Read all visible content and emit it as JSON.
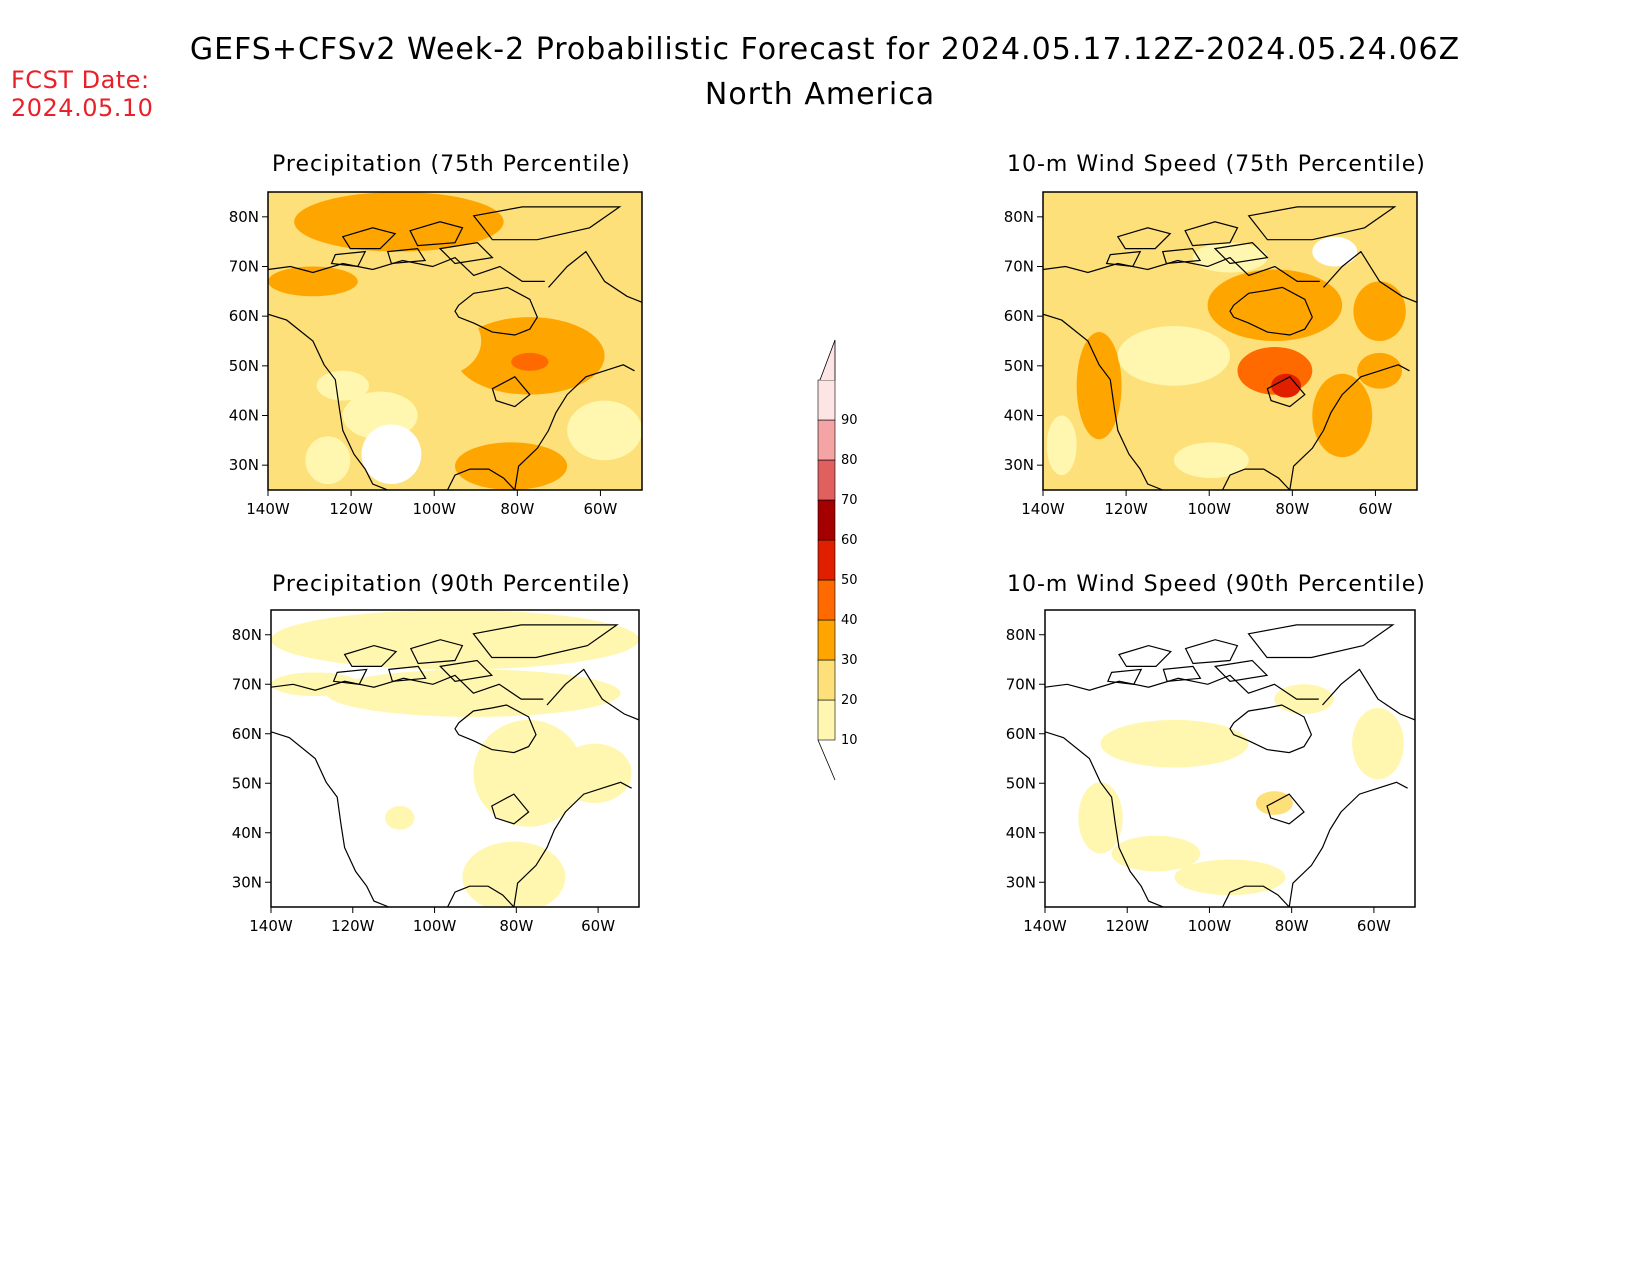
{
  "header": {
    "title": "GEFS+CFSv2 Week-2 Probabilistic Forecast for 2024.05.17.12Z-2024.05.24.06Z",
    "subtitle": "North America",
    "fcst_label": "FCST Date:",
    "fcst_date": "2024.05.10"
  },
  "axes": {
    "lat_labels": [
      "80N",
      "70N",
      "60N",
      "50N",
      "40N",
      "30N"
    ],
    "lon_labels": [
      "140W",
      "120W",
      "100W",
      "80W",
      "60W"
    ]
  },
  "panels": [
    {
      "title": "Precipitation (75th Percentile)",
      "variable": "precipitation",
      "percentile": 75
    },
    {
      "title": "10-m Wind Speed (75th Percentile)",
      "variable": "wind_speed_10m",
      "percentile": 75
    },
    {
      "title": "Precipitation (90th Percentile)",
      "variable": "precipitation",
      "percentile": 90
    },
    {
      "title": "10-m Wind Speed (90th Percentile)",
      "variable": "wind_speed_10m",
      "percentile": 90
    }
  ],
  "colorbar": {
    "levels": [
      "10",
      "20",
      "30",
      "40",
      "50",
      "60",
      "70",
      "80",
      "90"
    ],
    "colors": [
      "#fff7b0",
      "#fde07a",
      "#ffa500",
      "#ff6a00",
      "#e01e00",
      "#a50000",
      "#e06060",
      "#f4a4a4",
      "#fde5e5"
    ]
  },
  "chart_data": {
    "type": "heatmap",
    "title": "GEFS+CFSv2 Week-2 Probabilistic Forecast for 2024.05.17.12Z-2024.05.24.06Z",
    "subtitle": "North America",
    "xlabel": "",
    "ylabel": "",
    "xlim": [
      -140,
      -50
    ],
    "ylim": [
      25,
      85
    ],
    "contour_levels": [
      10,
      20,
      30,
      40,
      50,
      60,
      70,
      80,
      90
    ]
  }
}
